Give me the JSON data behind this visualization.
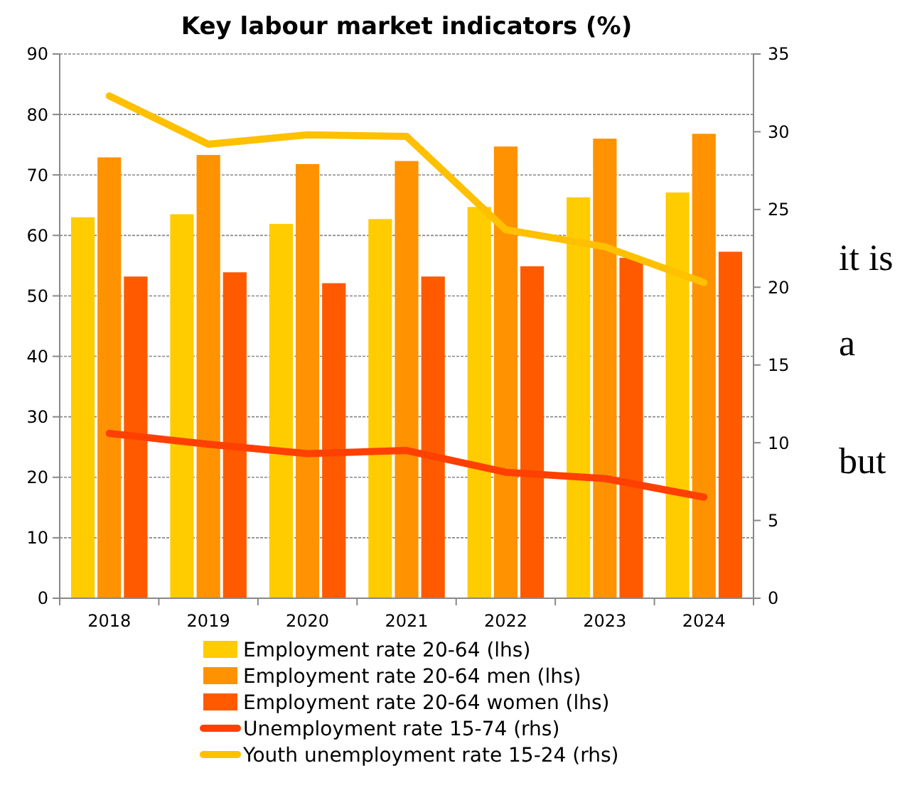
{
  "chart_data": {
    "type": "bar",
    "title": "Key labour market indicators (%)",
    "categories": [
      "2018",
      "2019",
      "2020",
      "2021",
      "2022",
      "2023",
      "2024"
    ],
    "series": [
      {
        "name": "Employment rate 20-64 (lhs)",
        "color": "#ffcc00",
        "values": [
          63.0,
          63.5,
          61.9,
          62.7,
          64.7,
          66.3,
          67.1
        ]
      },
      {
        "name": "Employment rate 20-64 men (lhs)",
        "color": "#ff9200",
        "values": [
          72.9,
          73.3,
          71.8,
          72.3,
          74.7,
          76.0,
          76.8
        ]
      },
      {
        "name": "Employment rate 20-64 women (lhs)",
        "color": "#ff5a00",
        "values": [
          53.2,
          53.9,
          52.1,
          53.2,
          54.9,
          56.3,
          57.3
        ]
      },
      {
        "name": "Unemployment rate 15-74 (rhs)",
        "type": "line",
        "axis": "y2",
        "color": "#ff4000",
        "values": [
          10.6,
          9.9,
          9.3,
          9.5,
          8.1,
          7.7,
          6.5
        ]
      },
      {
        "name": "Youth unemployment rate 15-24 (rhs)",
        "type": "line",
        "axis": "y2",
        "color": "#ffc000",
        "values": [
          32.3,
          29.2,
          29.8,
          29.7,
          23.7,
          22.6,
          20.3
        ]
      }
    ],
    "ylim": [
      0,
      90
    ],
    "yticks": [
      0,
      10,
      20,
      30,
      40,
      50,
      60,
      70,
      80,
      90
    ],
    "y2lim": [
      0,
      35
    ],
    "y2ticks": [
      0,
      5,
      10,
      15,
      20,
      25,
      30,
      35
    ],
    "grid": "y",
    "legend": "bottom",
    "marker": "none",
    "line_style": "solid",
    "annotations": [
      "it is",
      "a",
      "but"
    ]
  }
}
